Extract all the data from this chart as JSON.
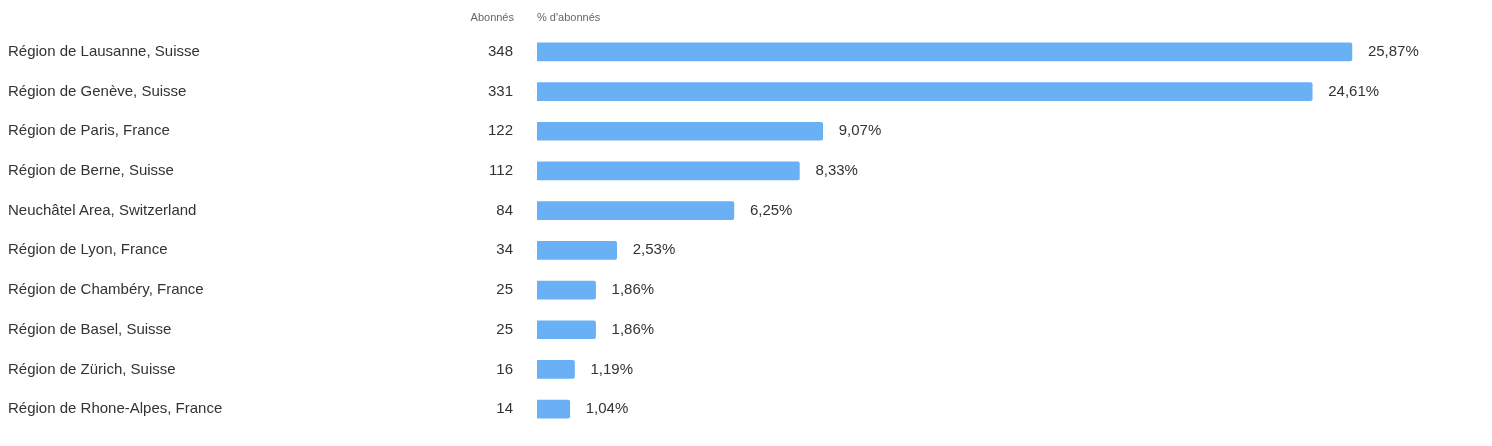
{
  "chart_data": {
    "type": "bar",
    "orientation": "horizontal",
    "xlabel": "% d'abonnés",
    "categories": [
      "Région de Lausanne, Suisse",
      "Région de Genève, Suisse",
      "Région de Paris, France",
      "Région de Berne, Suisse",
      "Neuchâtel Area, Switzerland",
      "Région de Lyon, France",
      "Région de Chambéry, France",
      "Région de Basel, Suisse",
      "Région de Zürich, Suisse",
      "Région de Rhone-Alpes, France"
    ],
    "values": [
      25.87,
      24.61,
      9.07,
      8.33,
      6.25,
      2.53,
      1.86,
      1.86,
      1.19,
      1.04
    ],
    "value_labels": [
      "25,87%",
      "24,61%",
      "9,07%",
      "8,33%",
      "6,25%",
      "2,53%",
      "1,86%",
      "1,86%",
      "1,19%",
      "1,04%"
    ],
    "color": "#6ab0f5",
    "tick_labels": "y",
    "grid": false,
    "legend": false,
    "annotations": [
      "Abonnés",
      "348",
      "331",
      "122",
      "112",
      "84",
      "34",
      "25",
      "25",
      "16",
      "14"
    ]
  }
}
